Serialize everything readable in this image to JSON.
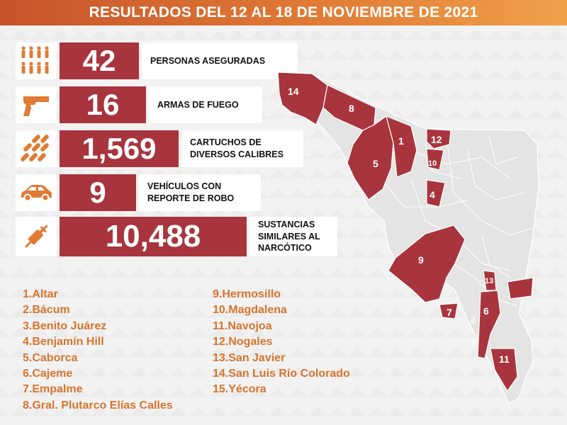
{
  "title": "RESULTADOS DEL 12 AL 18 DE NOVIEMBRE DE 2021",
  "colors": {
    "accent": "#a8353d",
    "legend_text": "#d8742c",
    "banner_start": "#c7542a",
    "banner_end": "#f0a14a"
  },
  "stats": [
    {
      "icon": "people-icon",
      "value": "42",
      "label_lines": [
        "PERSONAS ASEGURADAS"
      ]
    },
    {
      "icon": "pistol-icon",
      "value": "16",
      "label_lines": [
        "ARMAS DE FUEGO"
      ]
    },
    {
      "icon": "bullets-icon",
      "value": "1,569",
      "label_lines": [
        "CARTUCHOS DE",
        "DIVERSOS CALIBRES"
      ]
    },
    {
      "icon": "car-icon",
      "value": "9",
      "label_lines": [
        "VEHÍCULOS CON",
        "REPORTE DE ROBO"
      ]
    },
    {
      "icon": "syringe-icon",
      "value": "10,488",
      "label_lines": [
        "SUSTANCIAS",
        "SIMILARES AL",
        "NARCÓTICO"
      ]
    }
  ],
  "municipalities_col1": [
    "1.Altar",
    "2.Bácum",
    "3.Benito Juárez",
    "4.Benjamín Hill",
    "5.Caborca",
    "6.Cajeme",
    "7.Empalme",
    "8.Gral. Plutarco Elías Calles"
  ],
  "municipalities_col2": [
    "9.Hermosillo",
    "10.Magdalena",
    "11.Navojoa",
    "12.Nogales",
    "13.San Javier",
    "14.San Luis Río Colorado",
    "15.Yécora"
  ],
  "map_numbers": [
    "14",
    "8",
    "1",
    "12",
    "10",
    "5",
    "4",
    "9",
    "13",
    "7",
    "6",
    "2",
    "3",
    "11"
  ]
}
